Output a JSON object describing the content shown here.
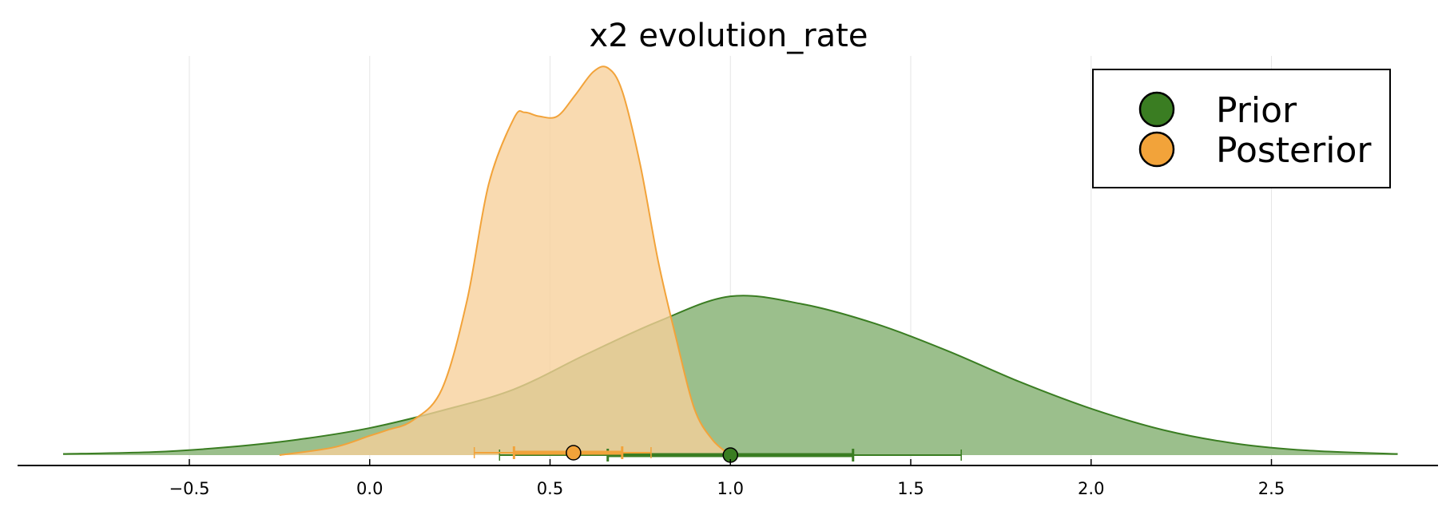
{
  "chart_data": {
    "type": "area",
    "title": "x2 evolution_rate",
    "xlabel": "",
    "ylabel": "",
    "xlim": [
      -0.95,
      2.95
    ],
    "ylim": [
      0,
      1.0
    ],
    "xticks": [
      -0.5,
      0.0,
      0.5,
      1.0,
      1.5,
      2.0,
      2.5
    ],
    "xtick_labels": [
      "−0.5",
      "0.0",
      "0.5",
      "1.0",
      "1.5",
      "2.0",
      "2.5"
    ],
    "grid": true,
    "legend": {
      "placement": "top-right"
    },
    "series": [
      {
        "name": "Prior",
        "color": "#3a7d22",
        "fill": "#9bbf8c",
        "x": [
          -0.85,
          -0.6,
          -0.4,
          -0.2,
          0.0,
          0.2,
          0.4,
          0.6,
          0.8,
          1.0,
          1.2,
          1.4,
          1.6,
          1.8,
          2.0,
          2.2,
          2.4,
          2.6,
          2.85
        ],
        "density": [
          0.003,
          0.008,
          0.02,
          0.04,
          0.07,
          0.115,
          0.17,
          0.26,
          0.345,
          0.41,
          0.39,
          0.34,
          0.27,
          0.19,
          0.12,
          0.065,
          0.03,
          0.012,
          0.003
        ],
        "point_estimate": 1.0,
        "interval_inner": [
          0.66,
          1.34
        ],
        "interval_outer": [
          0.36,
          1.64
        ]
      },
      {
        "name": "Posterior",
        "color": "#f2a33a",
        "fill": "#f7d09a",
        "x": [
          -0.25,
          -0.1,
          0.0,
          0.05,
          0.12,
          0.2,
          0.27,
          0.33,
          0.4,
          0.43,
          0.47,
          0.52,
          0.57,
          0.62,
          0.66,
          0.7,
          0.75,
          0.8,
          0.85,
          0.9,
          0.95,
          1.0
        ],
        "density": [
          0.0,
          0.02,
          0.05,
          0.065,
          0.09,
          0.17,
          0.4,
          0.7,
          0.87,
          0.885,
          0.875,
          0.875,
          0.93,
          0.99,
          1.0,
          0.94,
          0.75,
          0.5,
          0.3,
          0.12,
          0.04,
          0.0
        ],
        "point_estimate": 0.565,
        "interval_inner": [
          0.4,
          0.7
        ],
        "interval_outer": [
          0.29,
          0.78
        ]
      }
    ]
  }
}
